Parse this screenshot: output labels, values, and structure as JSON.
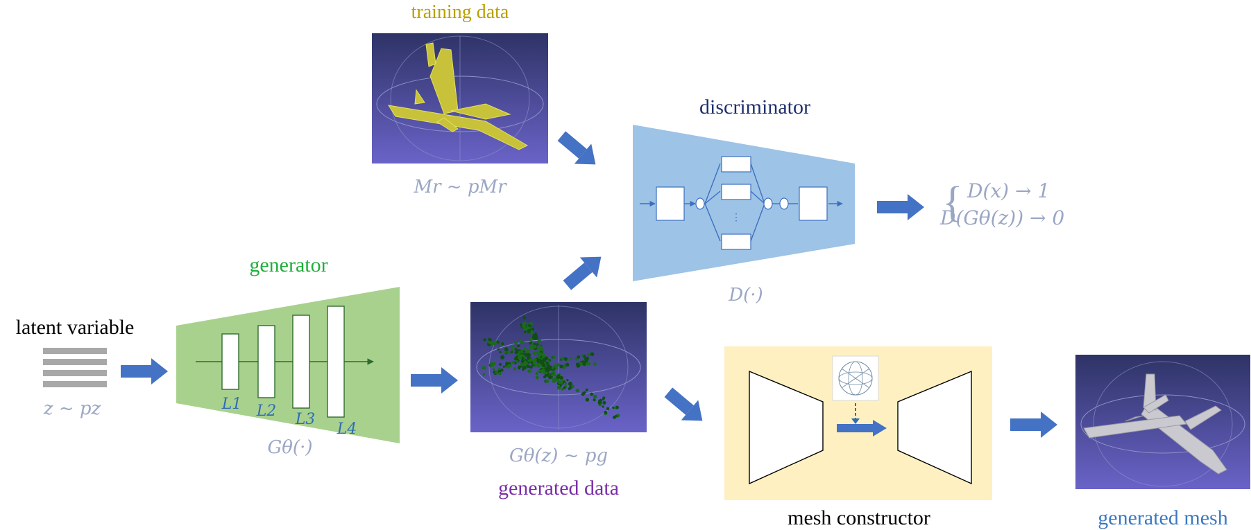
{
  "labels": {
    "training_data": "training data",
    "discriminator": "discriminator",
    "generator": "generator",
    "latent_variable": "latent variable",
    "generated_data": "generated data",
    "mesh_constructor": "mesh constructor",
    "generated_mesh": "generated mesh"
  },
  "math": {
    "real_dist": "Mr ~ pMr",
    "latent_dist": "z ~ pz",
    "generator_fn": "Gθ(·)",
    "generated_dist": "Gθ(z) ~ pg",
    "discriminator_fn": "D(·)",
    "objective_real": "D(x) → 1",
    "objective_fake": "D(Gθ(z)) → 0",
    "layers": [
      "L1",
      "L2",
      "L3",
      "L4"
    ],
    "discriminator_ellipsis": "⋮"
  },
  "colors": {
    "training_title": "#b8a000",
    "discriminator_title": "#1f2f6e",
    "generator_title": "#1fae3a",
    "generated_title": "#7a2ea6",
    "generated_mesh_title": "#3b78c2",
    "math_gray": "#9aa6c4",
    "layer_blue": "#2f6db3",
    "arrow_blue": "#4472c4",
    "generator_fill": "#a9d18e",
    "discriminator_fill": "#9dc3e6",
    "mesh_box_fill": "#fff0c1",
    "render_bg_top": "#3a3f78",
    "render_bg_bottom": "#6a63c8"
  }
}
